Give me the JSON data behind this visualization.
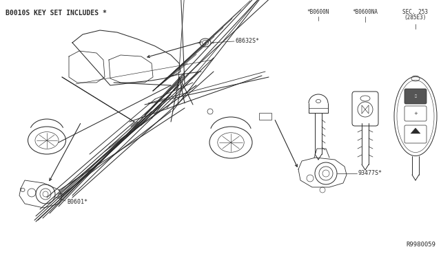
{
  "bg_color": "#ffffff",
  "header_text": "B0010S KEY SET INCLUDES *",
  "ref_number": "R9980059",
  "lc": "#2a2a2a",
  "tc": "#2a2a2a",
  "fs_header": 7,
  "fs_label": 6,
  "fs_ref": 6.5,
  "ignition_label": "68632S*",
  "door_label": "B0601*",
  "tailgate_label": "93477S*",
  "key1_label": "*B0600N",
  "key2_label": "*B0600NA",
  "sec_label1": "SEC. 253",
  "sec_label2": "(285E3)"
}
